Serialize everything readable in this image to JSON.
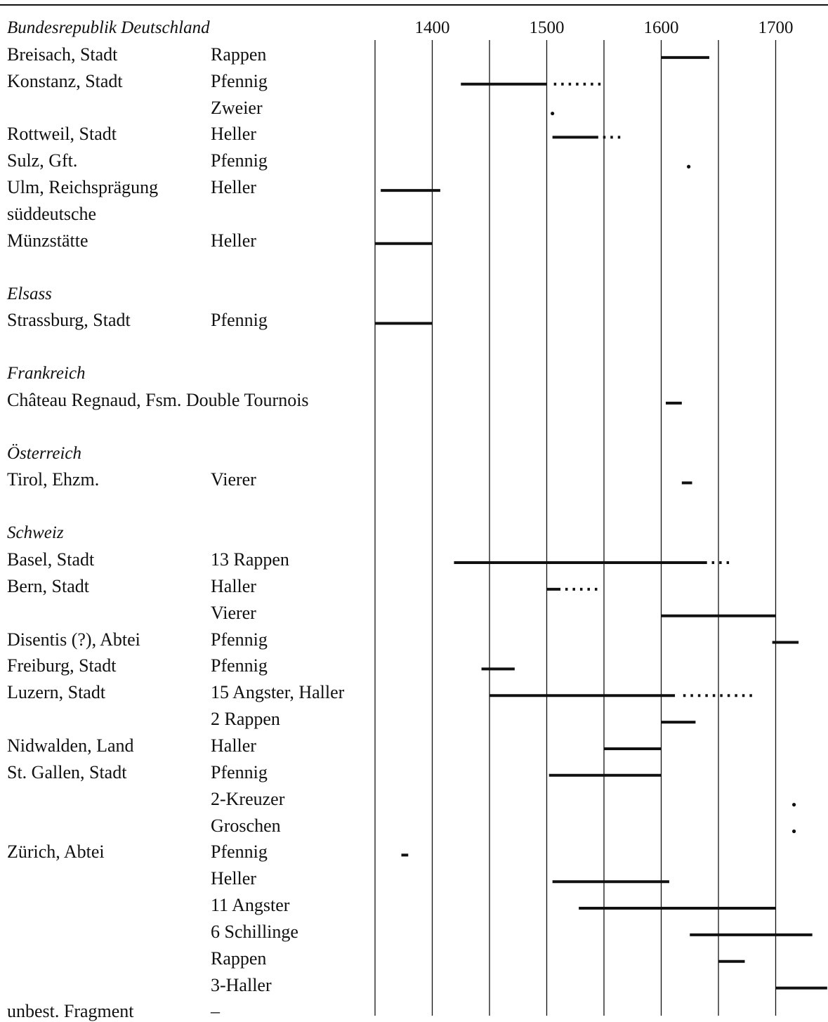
{
  "chart_data": {
    "type": "gantt",
    "xlim": [
      1350,
      1745
    ],
    "grid_years": [
      1350,
      1400,
      1450,
      1500,
      1550,
      1600,
      1650,
      1700
    ],
    "tick_labels": [
      "1400",
      "1500",
      "1600",
      "1700"
    ],
    "sections": [
      {
        "title": "Bundesrepublik Deutschland",
        "rows": [
          {
            "place": "Breisach, Stadt",
            "coin": "Rappen",
            "solid": [
              [
                1600,
                1642
              ]
            ]
          },
          {
            "place": "Konstanz, Stadt",
            "coin": "Pfennig",
            "solid": [
              [
                1425,
                1500
              ]
            ],
            "dotted": [
              [
                1505,
                1548
              ]
            ]
          },
          {
            "place": "",
            "coin": "Zweier",
            "dots": [
              1505
            ]
          },
          {
            "place": "Rottweil, Stadt",
            "coin": "Heller",
            "solid": [
              [
                1505,
                1545
              ]
            ],
            "dotted": [
              [
                1548,
                1567
              ]
            ]
          },
          {
            "place": "Sulz, Gft.",
            "coin": "Pfennig",
            "dots": [
              1624
            ]
          },
          {
            "place": "Ulm, Reichsprägung",
            "coin": "Heller",
            "solid": [
              [
                1355,
                1407
              ]
            ]
          },
          {
            "place": "süddeutsche",
            "coin": ""
          },
          {
            "place": "Münzstätte",
            "coin": "Heller",
            "solid": [
              [
                1350,
                1400
              ]
            ]
          }
        ]
      },
      {
        "title": "Elsass",
        "rows": [
          {
            "place": "Strassburg, Stadt",
            "coin": "Pfennig",
            "solid": [
              [
                1350,
                1400
              ]
            ]
          }
        ]
      },
      {
        "title": "Frankreich",
        "rows": [
          {
            "place": "Château Regnaud, Fsm. Double Tournois",
            "coin": "",
            "solid": [
              [
                1604,
                1618
              ]
            ]
          }
        ]
      },
      {
        "title": "Österreich",
        "rows": [
          {
            "place": "Tirol, Ehzm.",
            "coin": "Vierer",
            "solid": [
              [
                1618,
                1627
              ]
            ]
          }
        ]
      },
      {
        "title": "Schweiz",
        "rows": [
          {
            "place": "Basel, Stadt",
            "coin": "13 Rappen",
            "solid": [
              [
                1419,
                1640
              ]
            ],
            "dotted": [
              [
                1643,
                1663
              ]
            ]
          },
          {
            "place": "Bern, Stadt",
            "coin": "Haller",
            "solid": [
              [
                1500,
                1512
              ]
            ],
            "dotted": [
              [
                1515,
                1545
              ]
            ]
          },
          {
            "place": "",
            "coin": "Vierer",
            "solid": [
              [
                1600,
                1700
              ]
            ]
          },
          {
            "place": "Disentis (?), Abtei",
            "coin": "Pfennig",
            "solid": [
              [
                1697,
                1720
              ]
            ]
          },
          {
            "place": "Freiburg, Stadt",
            "coin": "Pfennig",
            "solid": [
              [
                1443,
                1472
              ]
            ]
          },
          {
            "place": "Luzern, Stadt",
            "coin": "15 Angster, Haller",
            "solid": [
              [
                1450,
                1612
              ]
            ],
            "dotted": [
              [
                1618,
                1683
              ]
            ]
          },
          {
            "place": "",
            "coin": "2 Rappen",
            "solid": [
              [
                1600,
                1630
              ]
            ]
          },
          {
            "place": "Nidwalden, Land",
            "coin": "Haller",
            "solid": [
              [
                1550,
                1600
              ]
            ]
          },
          {
            "place": "St. Gallen, Stadt",
            "coin": "Pfennig",
            "solid": [
              [
                1502,
                1600
              ]
            ]
          },
          {
            "place": "",
            "coin": "2-Kreuzer",
            "dots": [
              1716
            ]
          },
          {
            "place": "",
            "coin": "Groschen",
            "dots": [
              1716
            ]
          },
          {
            "place": "Zürich, Abtei",
            "coin": "Pfennig",
            "solid": [
              [
                1373,
                1379
              ]
            ]
          },
          {
            "place": "",
            "coin": "Heller",
            "solid": [
              [
                1505,
                1607
              ]
            ]
          },
          {
            "place": "",
            "coin": "11 Angster",
            "solid": [
              [
                1528,
                1700
              ]
            ]
          },
          {
            "place": "",
            "coin": "6 Schillinge",
            "solid": [
              [
                1625,
                1732
              ]
            ]
          },
          {
            "place": "",
            "coin": "Rappen",
            "solid": [
              [
                1650,
                1673
              ]
            ]
          },
          {
            "place": "",
            "coin": "3-Haller",
            "solid": [
              [
                1700,
                1745
              ]
            ]
          },
          {
            "place": "unbest. Fragment",
            "coin": "–"
          }
        ]
      }
    ]
  },
  "colors": {
    "ink": "#111111",
    "background": "#ffffff"
  }
}
